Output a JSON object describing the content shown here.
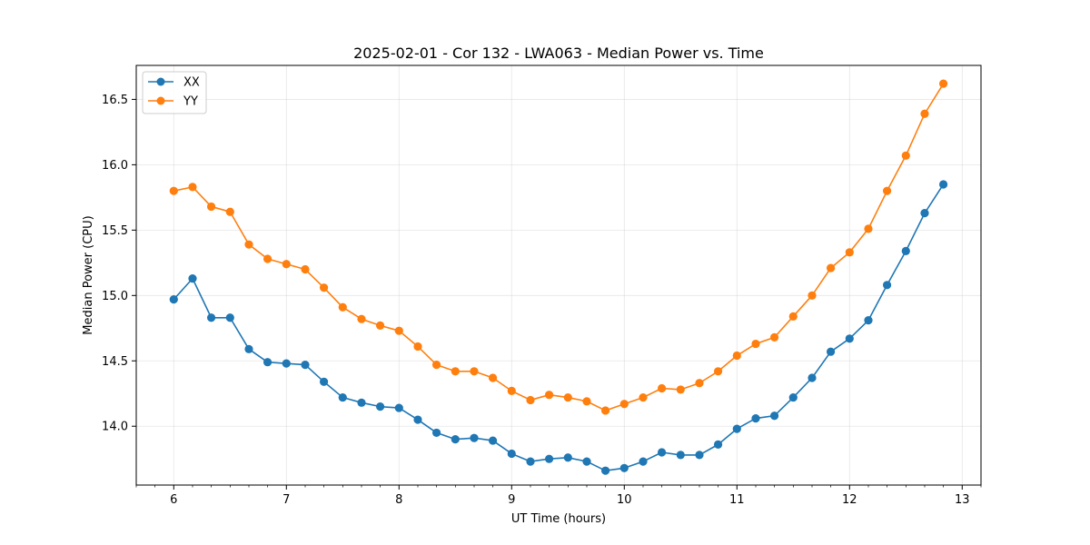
{
  "chart_data": {
    "type": "line",
    "title": "2025-02-01 - Cor 132 - LWA063 - Median Power vs. Time",
    "xlabel": "UT Time (hours)",
    "ylabel": "Median Power (CPU)",
    "xlim": [
      5.667,
      13.167
    ],
    "ylim": [
      13.55,
      16.76
    ],
    "xticks": [
      6,
      7,
      8,
      9,
      10,
      11,
      12,
      13
    ],
    "xtick_labels": [
      "6",
      "7",
      "8",
      "9",
      "10",
      "11",
      "12",
      "13"
    ],
    "yticks": [
      14.0,
      14.5,
      15.0,
      15.5,
      16.0,
      16.5
    ],
    "ytick_labels": [
      "14.0",
      "14.5",
      "15.0",
      "15.5",
      "16.0",
      "16.5"
    ],
    "grid": true,
    "legend_position": "top-left",
    "x": [
      6.0,
      6.167,
      6.333,
      6.5,
      6.667,
      6.833,
      7.0,
      7.167,
      7.333,
      7.5,
      7.667,
      7.833,
      8.0,
      8.167,
      8.333,
      8.5,
      8.667,
      8.833,
      9.0,
      9.167,
      9.333,
      9.5,
      9.667,
      9.833,
      10.0,
      10.167,
      10.333,
      10.5,
      10.667,
      10.833,
      11.0,
      11.167,
      11.333,
      11.5,
      11.667,
      11.833,
      12.0,
      12.167,
      12.333,
      12.5,
      12.667,
      12.833
    ],
    "series": [
      {
        "name": "XX",
        "color": "#1f77b4",
        "values": [
          14.97,
          15.13,
          14.83,
          14.83,
          14.59,
          14.49,
          14.48,
          14.47,
          14.34,
          14.22,
          14.18,
          14.15,
          14.14,
          14.05,
          13.95,
          13.9,
          13.91,
          13.89,
          13.79,
          13.73,
          13.75,
          13.76,
          13.73,
          13.66,
          13.68,
          13.73,
          13.8,
          13.78,
          13.78,
          13.86,
          13.98,
          14.06,
          14.08,
          14.22,
          14.37,
          14.57,
          14.67,
          14.81,
          15.08,
          15.34,
          15.63,
          15.85
        ]
      },
      {
        "name": "YY",
        "color": "#ff7f0e",
        "values": [
          15.8,
          15.83,
          15.68,
          15.64,
          15.39,
          15.28,
          15.24,
          15.2,
          15.06,
          14.91,
          14.82,
          14.77,
          14.73,
          14.61,
          14.47,
          14.42,
          14.42,
          14.37,
          14.27,
          14.2,
          14.24,
          14.22,
          14.19,
          14.12,
          14.17,
          14.22,
          14.29,
          14.28,
          14.33,
          14.42,
          14.54,
          14.63,
          14.68,
          14.84,
          15.0,
          15.21,
          15.33,
          15.51,
          15.8,
          16.07,
          16.39,
          16.62
        ]
      }
    ]
  }
}
